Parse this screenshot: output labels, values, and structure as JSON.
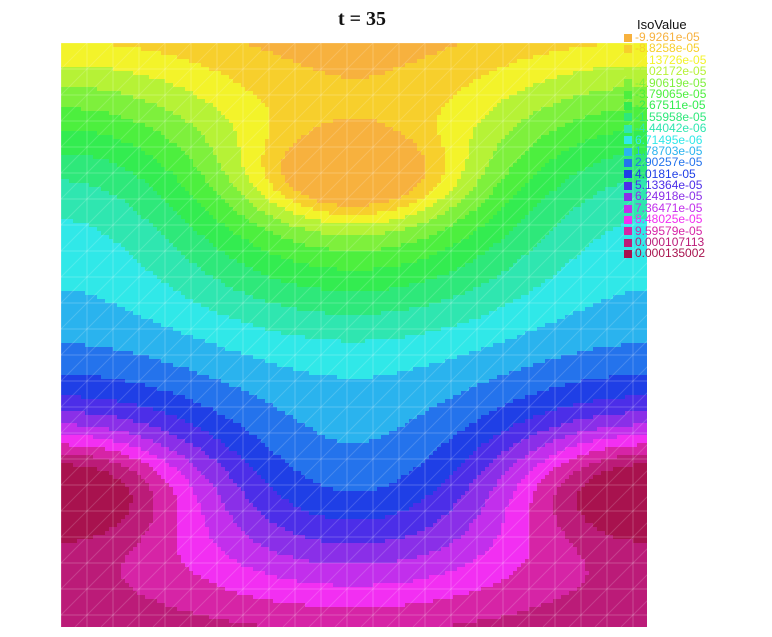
{
  "chart_data": {
    "type": "heatmap",
    "title": "t = 35",
    "legend_title": "IsoValue",
    "legend_placement": "top-right",
    "grid": "triangular mesh",
    "iso_levels": [
      {
        "label": "-9.9261e-05",
        "value": -9.9261e-05,
        "color": "#f7b13e"
      },
      {
        "label": "-8.8258e-05",
        "value": -8.8258e-05,
        "color": "#f7cf2c"
      },
      {
        "label": "-7.13726e-05",
        "value": -7.13726e-05,
        "color": "#f3f32a"
      },
      {
        "label": "-6.02172e-05",
        "value": -6.02172e-05,
        "color": "#b6f236"
      },
      {
        "label": "-4.90619e-05",
        "value": -4.90619e-05,
        "color": "#7ef03c"
      },
      {
        "label": "-3.79065e-05",
        "value": -3.79065e-05,
        "color": "#4def3e"
      },
      {
        "label": "-2.67511e-05",
        "value": -2.67511e-05,
        "color": "#33ec50"
      },
      {
        "label": "-1.55958e-05",
        "value": -1.55958e-05,
        "color": "#2ee87a"
      },
      {
        "label": "-4.44042e-06",
        "value": -4.44042e-06,
        "color": "#2fe6b0"
      },
      {
        "label": "6.71495e-06",
        "value": 6.71495e-06,
        "color": "#30e8e8"
      },
      {
        "label": "1.78703e-05",
        "value": 1.78703e-05,
        "color": "#2ab3ee"
      },
      {
        "label": "2.90257e-05",
        "value": 2.90257e-05,
        "color": "#2473ec"
      },
      {
        "label": "4.0181e-05",
        "value": 4.0181e-05,
        "color": "#1f3fe6"
      },
      {
        "label": "5.13364e-05",
        "value": 5.13364e-05,
        "color": "#4c2ee8"
      },
      {
        "label": "6.24918e-05",
        "value": 6.24918e-05,
        "color": "#8a2fe8"
      },
      {
        "label": "7.36471e-05",
        "value": 7.36471e-05,
        "color": "#c22fec"
      },
      {
        "label": "8.48025e-05",
        "value": 8.48025e-05,
        "color": "#f22ff2"
      },
      {
        "label": "9.59579e-05",
        "value": 9.59579e-05,
        "color": "#d624a6"
      },
      {
        "label": "0.000107113",
        "value": 0.000107113,
        "color": "#bb1b78"
      },
      {
        "label": "0.000135002",
        "value": 0.000135002,
        "color": "#a8124e"
      }
    ]
  }
}
